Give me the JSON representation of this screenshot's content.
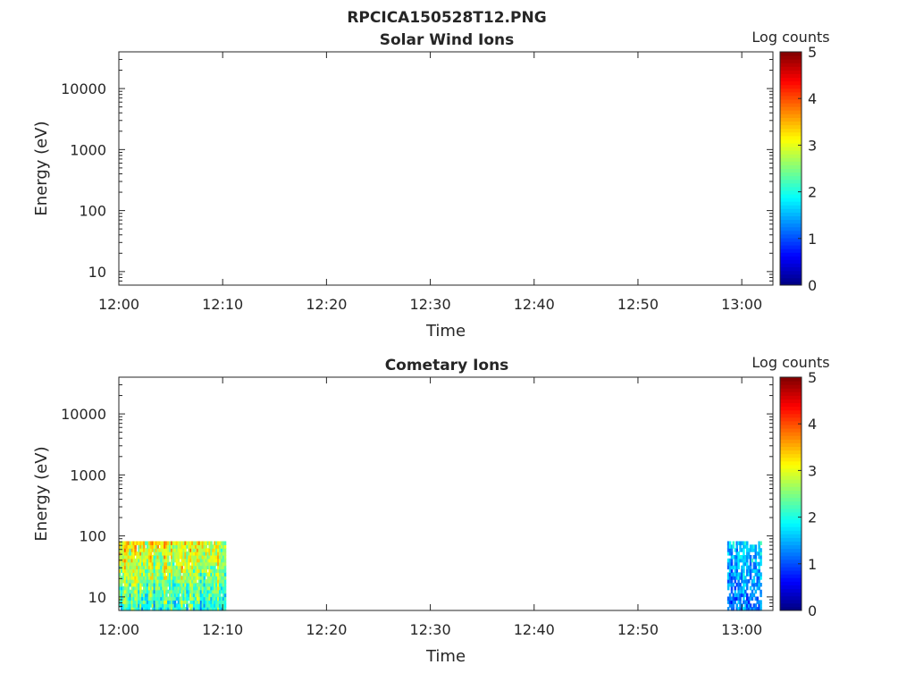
{
  "figure_title": "RPCICA150528T12.PNG",
  "colormap": "jet",
  "chart_data": [
    {
      "type": "heatmap",
      "title": "Solar Wind Ions",
      "xlabel": "Time",
      "ylabel": "Energy (eV)",
      "yscale": "log",
      "xlim_minutes_after_1200": [
        0,
        63
      ],
      "ylim": [
        6,
        40000
      ],
      "xticks": [
        0,
        10,
        20,
        30,
        40,
        50,
        60
      ],
      "xtick_labels": [
        "12:00",
        "12:10",
        "12:20",
        "12:30",
        "12:40",
        "12:50",
        "13:00"
      ],
      "yticks": [
        10,
        100,
        1000,
        10000
      ],
      "ytick_labels": [
        "10",
        "100",
        "1000",
        "10000"
      ],
      "colorbar": {
        "label": "Log counts",
        "range": [
          0,
          5
        ],
        "ticks": [
          "0",
          "1",
          "2",
          "3",
          "4",
          "5"
        ]
      },
      "data_blocks": []
    },
    {
      "type": "heatmap",
      "title": "Cometary Ions",
      "xlabel": "Time",
      "ylabel": "Energy (eV)",
      "yscale": "log",
      "xlim_minutes_after_1200": [
        0,
        63
      ],
      "ylim": [
        6,
        40000
      ],
      "xticks": [
        0,
        10,
        20,
        30,
        40,
        50,
        60
      ],
      "xtick_labels": [
        "12:00",
        "12:10",
        "12:20",
        "12:30",
        "12:40",
        "12:50",
        "13:00"
      ],
      "yticks": [
        10,
        100,
        1000,
        10000
      ],
      "ytick_labels": [
        "10",
        "100",
        "1000",
        "10000"
      ],
      "colorbar": {
        "label": "Log counts",
        "range": [
          0,
          5
        ],
        "ticks": [
          "0",
          "1",
          "2",
          "3",
          "4",
          "5"
        ]
      },
      "data_blocks": [
        {
          "t_start": 0,
          "t_end": 10.3,
          "e_min": 6,
          "e_max": 82,
          "log_counts_typical": [
            1,
            4
          ],
          "peak_at_high_energy": true
        },
        {
          "t_start": 58.6,
          "t_end": 61.9,
          "e_min": 6,
          "e_max": 82,
          "log_counts_typical": [
            0.5,
            2.2
          ],
          "sparse": true
        }
      ]
    }
  ]
}
